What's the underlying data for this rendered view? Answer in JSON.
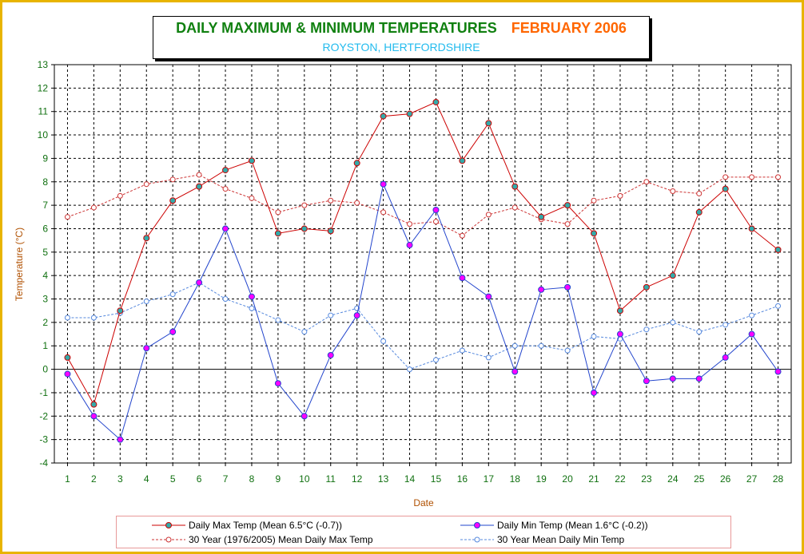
{
  "title": {
    "main": "DAILY MAXIMUM &  MINIMUM  TEMPERATURES",
    "month": "FEBRUARY 2006",
    "subtitle": "ROYSTON, HERTFORDSHIRE"
  },
  "colors": {
    "frame": "#e8b400",
    "max_series": "#cc0000",
    "min_series": "#2244cc",
    "max_marker_fill": "#33aaaa",
    "min_marker_fill": "#ff00ff",
    "mean_max": "#cc3333",
    "mean_min": "#5588dd",
    "axis_labels": "#b05000",
    "tick_labels": "#107010"
  },
  "chart_data": {
    "type": "line",
    "xlabel": "Date",
    "ylabel": "Temperature (°C)",
    "ylim": [
      -4,
      13
    ],
    "xlim": [
      1,
      28
    ],
    "grid": true,
    "legend_position": "bottom",
    "x": [
      1,
      2,
      3,
      4,
      5,
      6,
      7,
      8,
      9,
      10,
      11,
      12,
      13,
      14,
      15,
      16,
      17,
      18,
      19,
      20,
      21,
      22,
      23,
      24,
      25,
      26,
      27,
      28
    ],
    "y_ticks": [
      "-4",
      "-3",
      "-2",
      "-1",
      "0",
      "1",
      "2",
      "3",
      "4",
      "5",
      "6",
      "7",
      "8",
      "9",
      "10",
      "11",
      "12",
      "13"
    ],
    "x_ticks": [
      "1",
      "2",
      "3",
      "4",
      "5",
      "6",
      "7",
      "8",
      "9",
      "10",
      "11",
      "12",
      "13",
      "14",
      "15",
      "16",
      "17",
      "18",
      "19",
      "20",
      "21",
      "22",
      "23",
      "24",
      "25",
      "26",
      "27",
      "28"
    ],
    "series": [
      {
        "name": "Daily Max Temp (Mean 6.5°C (-0.7))",
        "style": "solid",
        "values": [
          0.5,
          -1.5,
          2.5,
          5.6,
          7.2,
          7.8,
          8.5,
          8.9,
          5.8,
          6.0,
          5.9,
          8.8,
          10.8,
          10.9,
          11.4,
          8.9,
          10.5,
          7.8,
          6.5,
          7.0,
          5.8,
          2.5,
          3.5,
          4.0,
          6.7,
          7.7,
          6.0,
          5.1
        ]
      },
      {
        "name": "Daily Min Temp (Mean 1.6°C (-0.2))",
        "style": "solid",
        "values": [
          -0.2,
          -2.0,
          -3.0,
          0.9,
          1.6,
          3.7,
          6.0,
          3.1,
          -0.6,
          -2.0,
          0.6,
          2.3,
          7.9,
          5.3,
          6.8,
          3.9,
          3.1,
          -0.1,
          3.4,
          3.5,
          -1.0,
          1.5,
          -0.5,
          -0.4,
          -0.4,
          0.5,
          1.5,
          -0.1
        ]
      },
      {
        "name": "30 Year (1976/2005) Mean Daily Max Temp",
        "style": "dashed",
        "values": [
          6.5,
          6.9,
          7.4,
          7.9,
          8.1,
          8.3,
          7.7,
          7.3,
          6.7,
          7.0,
          7.2,
          7.1,
          6.7,
          6.2,
          6.3,
          5.7,
          6.6,
          6.9,
          6.4,
          6.2,
          7.2,
          7.4,
          8.0,
          7.6,
          7.5,
          8.2,
          8.2,
          8.2
        ]
      },
      {
        "name": "30 Year Mean Daily Min Temp",
        "style": "dashed",
        "values": [
          2.2,
          2.2,
          2.4,
          2.9,
          3.2,
          3.7,
          3.0,
          2.6,
          2.1,
          1.6,
          2.3,
          2.6,
          1.2,
          0.0,
          0.4,
          0.8,
          0.5,
          1.0,
          1.0,
          0.8,
          1.4,
          1.3,
          1.7,
          2.0,
          1.6,
          1.9,
          2.3,
          2.7
        ]
      }
    ]
  },
  "legend": {
    "max": "Daily Max Temp (Mean 6.5°C (-0.7))",
    "min": "Daily Min Temp (Mean 1.6°C (-0.2))",
    "mean_max": "30 Year (1976/2005) Mean Daily Max Temp",
    "mean_min": "30 Year Mean Daily Min Temp"
  }
}
